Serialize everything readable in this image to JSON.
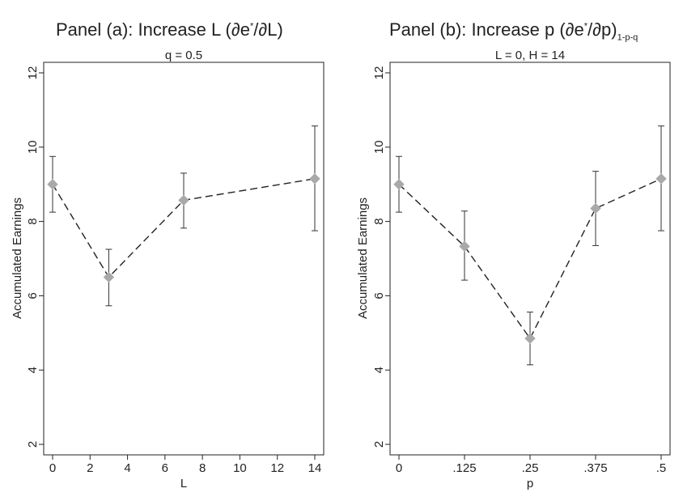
{
  "panels": [
    {
      "title_main": "Panel (a): Increase L (∂e",
      "title_sup": "*",
      "title_rest": "/∂L)",
      "title_sub": "",
      "subtitle": "q = 0.5"
    },
    {
      "title_main": "Panel (b): Increase p (∂e",
      "title_sup": "*",
      "title_rest": "/∂p)",
      "title_sub": "1-p-q",
      "subtitle": "L = 0, H = 14"
    }
  ],
  "chart_data": [
    {
      "type": "line",
      "xlabel": "L",
      "ylabel": "Accumulated Earnings",
      "xlim": [
        0,
        14
      ],
      "ylim": [
        2,
        12
      ],
      "x_ticks": [
        0,
        2,
        4,
        6,
        8,
        10,
        12,
        14
      ],
      "x_tick_labels": [
        "0",
        "2",
        "4",
        "6",
        "8",
        "10",
        "12",
        "14"
      ],
      "y_ticks": [
        2,
        4,
        6,
        8,
        10,
        12
      ],
      "y_tick_labels": [
        "2",
        "4",
        "6",
        "8",
        "10",
        "12"
      ],
      "grid": false,
      "series": [
        {
          "x": [
            0,
            3,
            7,
            14
          ],
          "y": [
            9.0,
            6.5,
            8.57,
            9.15
          ],
          "y_low": [
            8.25,
            5.73,
            7.82,
            7.75
          ],
          "y_high": [
            9.75,
            7.25,
            9.3,
            10.57
          ]
        }
      ],
      "colors": {
        "marker": "#a9a9a9",
        "line": "#222222",
        "errorbar": "#333333"
      }
    },
    {
      "type": "line",
      "xlabel": "p",
      "ylabel": "Accumulated Earnings",
      "xlim": [
        0,
        0.5
      ],
      "ylim": [
        2,
        12
      ],
      "x_ticks": [
        0,
        0.125,
        0.25,
        0.375,
        0.5
      ],
      "x_tick_labels": [
        "0",
        ".125",
        ".25",
        ".375",
        ".5"
      ],
      "y_ticks": [
        2,
        4,
        6,
        8,
        10,
        12
      ],
      "y_tick_labels": [
        "2",
        "4",
        "6",
        "8",
        "10",
        "12"
      ],
      "grid": false,
      "series": [
        {
          "x": [
            0,
            0.125,
            0.25,
            0.375,
            0.5
          ],
          "y": [
            9.0,
            7.33,
            4.85,
            8.35,
            9.15
          ],
          "y_low": [
            8.25,
            6.42,
            4.14,
            7.35,
            7.75
          ],
          "y_high": [
            9.75,
            8.28,
            5.56,
            9.35,
            10.57
          ]
        }
      ],
      "colors": {
        "marker": "#a9a9a9",
        "line": "#222222",
        "errorbar": "#333333"
      }
    }
  ]
}
